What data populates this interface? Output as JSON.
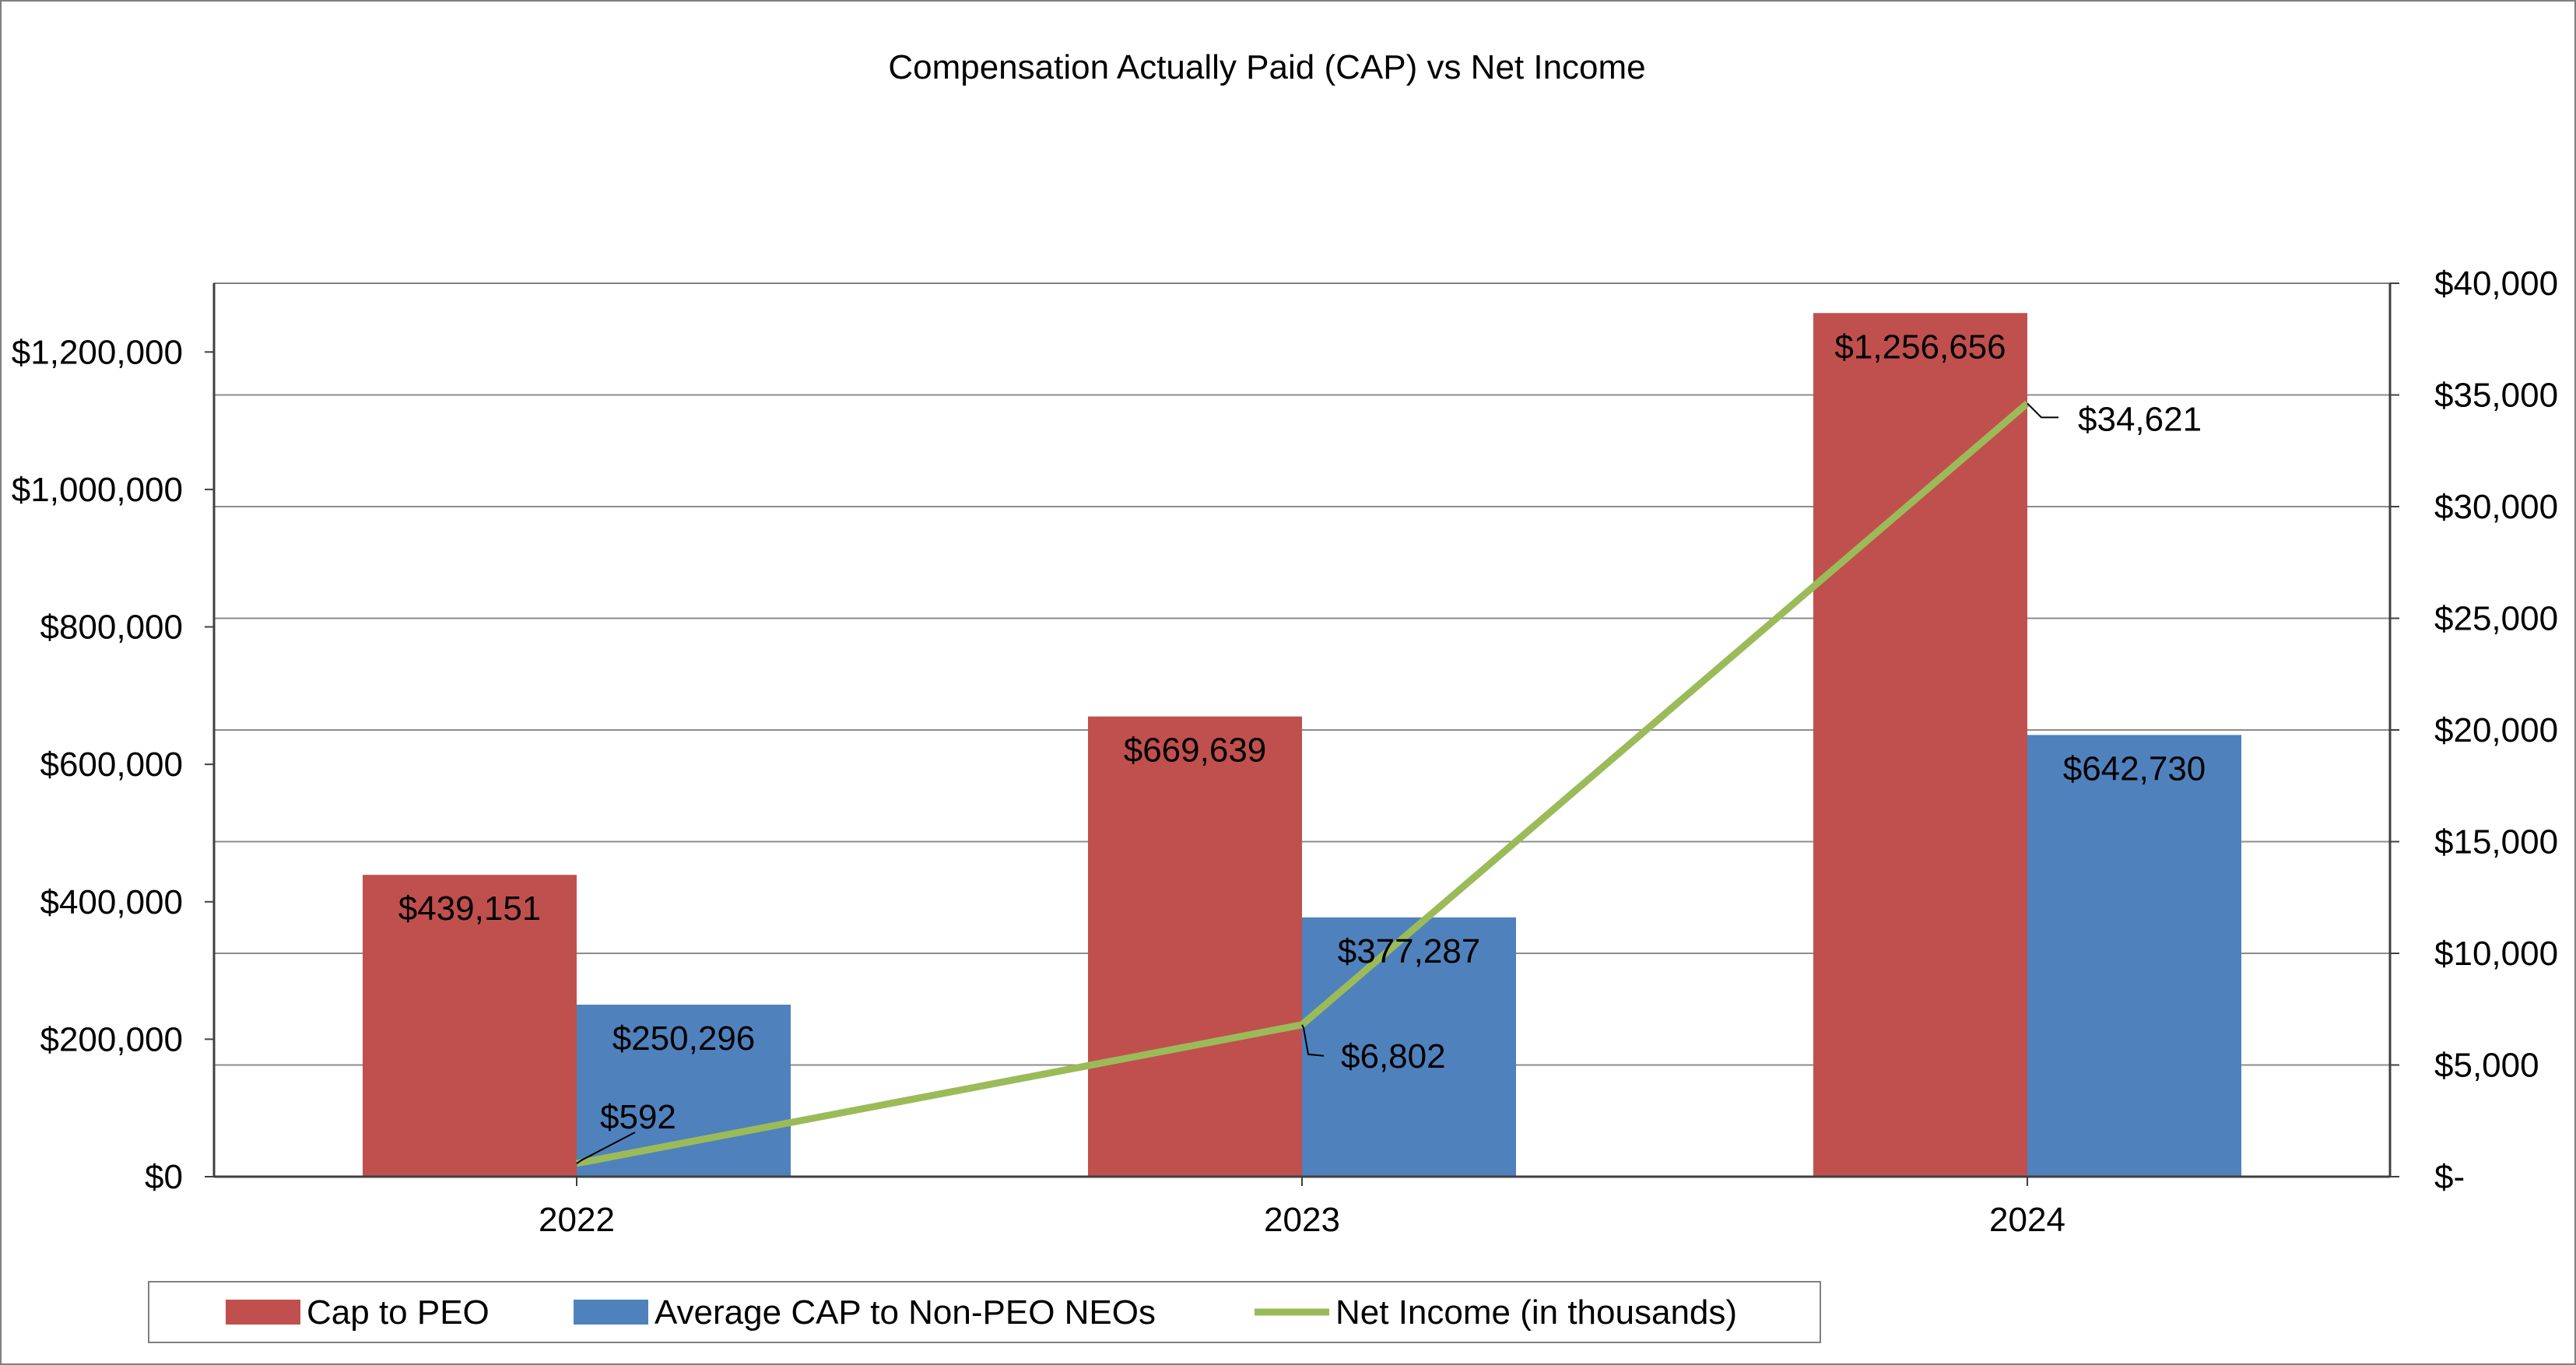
{
  "chart_data": {
    "type": "bar",
    "title": "Compensation Actually Paid (CAP) vs Net Income",
    "categories": [
      "2022",
      "2023",
      "2024"
    ],
    "series": [
      {
        "name": "Cap to PEO",
        "type": "bar",
        "axis": "left",
        "color": "#C0504D",
        "values": [
          439151,
          669639,
          1256656
        ],
        "labels": [
          "$439,151",
          "$669,639",
          "$1,256,656"
        ]
      },
      {
        "name": "Average CAP to Non-PEO NEOs",
        "type": "bar",
        "axis": "left",
        "color": "#4F81BD",
        "values": [
          250296,
          377287,
          642730
        ],
        "labels": [
          "$250,296",
          "$377,287",
          "$642,730"
        ]
      },
      {
        "name": "Net Income (in thousands)",
        "type": "line",
        "axis": "right",
        "color": "#9BBB59",
        "values": [
          592,
          6802,
          34621
        ],
        "labels": [
          "$592",
          "$6,802",
          "$34,621"
        ]
      }
    ],
    "y_left": {
      "ylim": [
        0,
        1300000
      ],
      "ticks": [
        0,
        200000,
        400000,
        600000,
        800000,
        1000000,
        1200000
      ],
      "tick_labels": [
        "$0",
        "$200,000",
        "$400,000",
        "$600,000",
        "$800,000",
        "$1,000,000",
        "$1,200,000"
      ]
    },
    "y_right": {
      "ylim": [
        0,
        40000
      ],
      "ticks": [
        0,
        5000,
        10000,
        15000,
        20000,
        25000,
        30000,
        35000,
        40000
      ],
      "tick_labels": [
        "$-",
        "$5,000",
        "$10,000",
        "$15,000",
        "$20,000",
        "$25,000",
        "$30,000",
        "$35,000",
        "$40,000"
      ]
    },
    "grid": true,
    "legend": "bottom"
  }
}
